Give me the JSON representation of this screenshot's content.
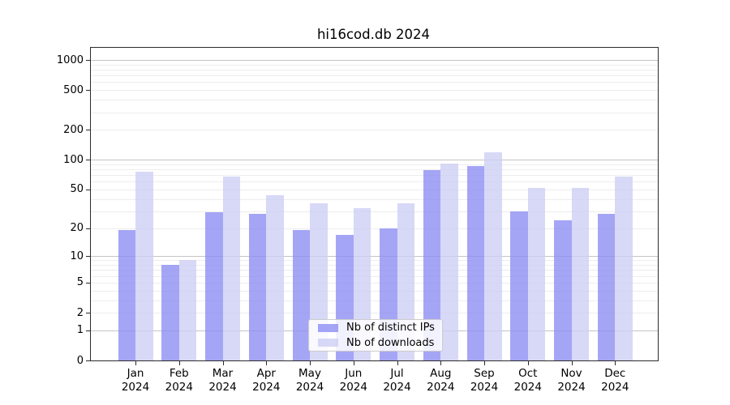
{
  "chart_data": {
    "type": "bar",
    "title": "hi16cod.db 2024",
    "categories": [
      "Jan",
      "Feb",
      "Mar",
      "Apr",
      "May",
      "Jun",
      "Jul",
      "Aug",
      "Sep",
      "Oct",
      "Nov",
      "Dec"
    ],
    "year_label": "2024",
    "series": [
      {
        "name": "Nb of distinct IPs",
        "color": "#8c8cf3",
        "values": [
          19,
          8,
          29,
          28,
          19,
          17,
          20,
          78,
          87,
          30,
          24,
          28
        ]
      },
      {
        "name": "Nb of downloads",
        "color": "#cdcdf5",
        "values": [
          75,
          9,
          67,
          44,
          36,
          32,
          36,
          92,
          120,
          52,
          52,
          68
        ]
      }
    ],
    "yticks": [
      0,
      1,
      2,
      5,
      10,
      20,
      50,
      100,
      200,
      500,
      1000
    ],
    "ylabel": "",
    "xlabel": "",
    "scale": "log(1+y)",
    "ylim": [
      0,
      1320
    ],
    "grid": "on",
    "grid_major_at": [
      1,
      10,
      100,
      1000
    ],
    "legend_position": "lower center"
  },
  "colors": {
    "background": "#ffffff",
    "spine": "#2b2b2b",
    "grid_minor": "#ededed",
    "grid_major": "#c4c4c4",
    "text": "#000000",
    "legend_border": "#cccccc"
  }
}
